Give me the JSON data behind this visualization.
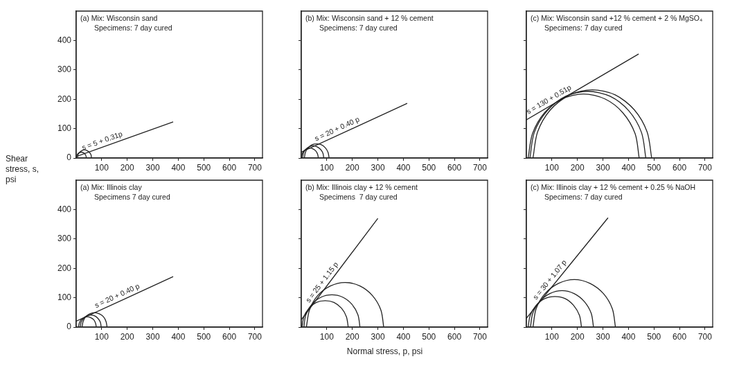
{
  "chart_data": [
    {
      "type": "line",
      "ylabel": "Shear stress, s, psi",
      "xlim": [
        0,
        730
      ],
      "ylim": [
        0,
        500
      ],
      "xticks": [
        100,
        200,
        300,
        400,
        500,
        600,
        700
      ],
      "yticks": [
        0,
        100,
        200,
        300,
        400
      ],
      "marker": "none",
      "line_style": "solid",
      "annotations": [
        "(a) Mix: Wisconsin sand",
        "Specimens: 7 day cured",
        {
          "text": "s = 5 + 0.31p",
          "x": 110,
          "y": 39
        }
      ],
      "series": [
        {
          "color": "#222222",
          "x": [
            0,
            380
          ],
          "values": [
            5,
            123
          ]
        },
        {
          "color": "#222222",
          "x": [
            0,
            2,
            6,
            12,
            20,
            28,
            34,
            38,
            40
          ],
          "values": [
            0,
            8,
            14,
            18,
            20,
            18,
            14,
            8,
            0
          ]
        },
        {
          "color": "#222222",
          "x": [
            5,
            7,
            13,
            22,
            32,
            43,
            52,
            58,
            60
          ],
          "values": [
            0,
            11,
            19,
            25,
            28,
            25,
            19,
            11,
            0
          ]
        }
      ]
    },
    {
      "type": "line",
      "tick_labels": "x",
      "xlim": [
        0,
        730
      ],
      "ylim": [
        0,
        500
      ],
      "xticks": [
        100,
        200,
        300,
        400,
        500,
        600,
        700
      ],
      "yticks": [
        0,
        100,
        200,
        300,
        400
      ],
      "marker": "none",
      "line_style": "solid",
      "annotations": [
        "(b) Mix: Wisconsin sand + 12 % cement",
        "Specimens: 7 day cured",
        {
          "text": "s = 20 + 0.40 p",
          "x": 150,
          "y": 80
        }
      ],
      "series": [
        {
          "color": "#222222",
          "x": [
            0,
            415
          ],
          "values": [
            20,
            186
          ]
        },
        {
          "color": "#222222",
          "x": [
            0,
            3,
            10,
            21,
            34,
            46,
            57,
            64,
            67
          ],
          "values": [
            0,
            13,
            24,
            31,
            34,
            31,
            24,
            13,
            0
          ]
        },
        {
          "color": "#222222",
          "x": [
            5,
            8,
            17,
            31,
            46,
            62,
            76,
            85,
            88
          ],
          "values": [
            0,
            16,
            29,
            38,
            42,
            38,
            29,
            16,
            0
          ]
        },
        {
          "color": "#222222",
          "x": [
            12,
            16,
            26,
            42,
            60,
            79,
            95,
            105,
            109
          ],
          "values": [
            0,
            19,
            34,
            45,
            48,
            45,
            34,
            19,
            0
          ]
        }
      ]
    },
    {
      "type": "line",
      "tick_labels": "x",
      "xlim": [
        0,
        730
      ],
      "ylim": [
        0,
        500
      ],
      "xticks": [
        100,
        200,
        300,
        400,
        500,
        600,
        700
      ],
      "yticks": [
        0,
        100,
        200,
        300,
        400
      ],
      "marker": "none",
      "line_style": "solid",
      "annotations": [
        "(c) Mix: Wisconsin sand +12 % cement + 2 % MgSO₄",
        "Specimens: 7 day cured",
        {
          "text": "s = 130 + 0.51p",
          "x": 100,
          "y": 181
        }
      ],
      "series": [
        {
          "color": "#222222",
          "x": [
            0,
            440
          ],
          "values": [
            130,
            354
          ]
        },
        {
          "color": "#222222",
          "x": [
            7,
            24,
            71,
            141,
            224,
            308,
            378,
            426,
            442
          ],
          "values": [
            0,
            83,
            154,
            201,
            218,
            201,
            154,
            83,
            0
          ]
        },
        {
          "color": "#222222",
          "x": [
            14,
            31,
            81,
            154,
            241,
            328,
            402,
            451,
            468
          ],
          "values": [
            0,
            87,
            160,
            210,
            227,
            210,
            160,
            87,
            0
          ]
        },
        {
          "color": "#222222",
          "x": [
            26,
            44,
            94,
            170,
            258,
            348,
            423,
            473,
            491
          ],
          "values": [
            0,
            89,
            164,
            215,
            232,
            215,
            164,
            89,
            0
          ]
        }
      ]
    },
    {
      "type": "line",
      "xlim": [
        0,
        730
      ],
      "ylim": [
        0,
        500
      ],
      "xticks": [
        100,
        200,
        300,
        400,
        500,
        600,
        700
      ],
      "yticks": [
        0,
        100,
        200,
        300,
        400
      ],
      "marker": "none",
      "line_style": "solid",
      "annotations": [
        "(a) Mix: Illinois clay",
        "Specimens 7 day cured",
        {
          "text": "s = 20 + 0.40 p",
          "x": 170,
          "y": 88
        }
      ],
      "series": [
        {
          "color": "#222222",
          "x": [
            0,
            380
          ],
          "values": [
            20,
            172
          ]
        },
        {
          "color": "#222222",
          "x": [
            9,
            12,
            19,
            31,
            44,
            57,
            69,
            76,
            79
          ],
          "values": [
            0,
            13,
            25,
            32,
            35,
            32,
            25,
            13,
            0
          ]
        },
        {
          "color": "#222222",
          "x": [
            16,
            19,
            28,
            41,
            57,
            73,
            86,
            95,
            98
          ],
          "values": [
            0,
            16,
            29,
            38,
            41,
            38,
            29,
            16,
            0
          ]
        },
        {
          "color": "#222222",
          "x": [
            23,
            27,
            37,
            53,
            72,
            91,
            107,
            117,
            121
          ],
          "values": [
            0,
            19,
            35,
            45,
            49,
            45,
            35,
            19,
            0
          ]
        }
      ]
    },
    {
      "type": "line",
      "tick_labels": "x",
      "xlabel": "Normal stress, p, psi",
      "xlim": [
        0,
        730
      ],
      "ylim": [
        0,
        500
      ],
      "xticks": [
        100,
        200,
        300,
        400,
        500,
        600,
        700
      ],
      "yticks": [
        0,
        100,
        200,
        300,
        400
      ],
      "marker": "none",
      "line_style": "solid",
      "annotations": [
        "(b) Mix: Illinois clay + 12 % cement",
        "Specimens  7 day cured",
        {
          "text": "s = 25 + 1.15 p",
          "x": 100,
          "y": 140
        }
      ],
      "series": [
        {
          "color": "#222222",
          "x": [
            0,
            300
          ],
          "values": [
            25,
            370
          ]
        },
        {
          "color": "#222222",
          "x": [
            3,
            10,
            30,
            59,
            94,
            128,
            158,
            177,
            184
          ],
          "values": [
            0,
            35,
            64,
            84,
            90,
            84,
            64,
            35,
            0
          ]
        },
        {
          "color": "#222222",
          "x": [
            10,
            18,
            42,
            78,
            120,
            162,
            198,
            222,
            230
          ],
          "values": [
            0,
            42,
            78,
            102,
            110,
            102,
            78,
            42,
            0
          ]
        },
        {
          "color": "#222222",
          "x": [
            20,
            32,
            64,
            114,
            172,
            230,
            279,
            312,
            323
          ],
          "values": [
            0,
            58,
            107,
            140,
            152,
            140,
            107,
            58,
            0
          ]
        }
      ]
    },
    {
      "type": "line",
      "tick_labels": "x",
      "xlim": [
        0,
        730
      ],
      "ylim": [
        0,
        500
      ],
      "xticks": [
        100,
        200,
        300,
        400,
        500,
        600,
        700
      ],
      "yticks": [
        0,
        100,
        200,
        300,
        400
      ],
      "marker": "none",
      "line_style": "solid",
      "annotations": [
        "(c) Mix: Illinois clay + 12 % cement + 0.25 % NaOH",
        "Specimens: 7 day cured",
        {
          "text": "s = 30 + 1.07 p",
          "x": 110,
          "y": 148
        }
      ],
      "series": [
        {
          "color": "#222222",
          "x": [
            0,
            320
          ],
          "values": [
            30,
            372
          ]
        },
        {
          "color": "#222222",
          "x": [
            7,
            15,
            38,
            72,
            112,
            152,
            185,
            208,
            216
          ],
          "values": [
            0,
            40,
            74,
            97,
            104,
            97,
            74,
            40,
            0
          ]
        },
        {
          "color": "#222222",
          "x": [
            16,
            25,
            52,
            92,
            140,
            187,
            227,
            254,
            263
          ],
          "values": [
            0,
            47,
            87,
            114,
            124,
            114,
            87,
            47,
            0
          ]
        },
        {
          "color": "#222222",
          "x": [
            26,
            38,
            73,
            126,
            188,
            249,
            302,
            337,
            349
          ],
          "values": [
            0,
            62,
            114,
            149,
            162,
            149,
            114,
            62,
            0
          ]
        }
      ]
    }
  ]
}
